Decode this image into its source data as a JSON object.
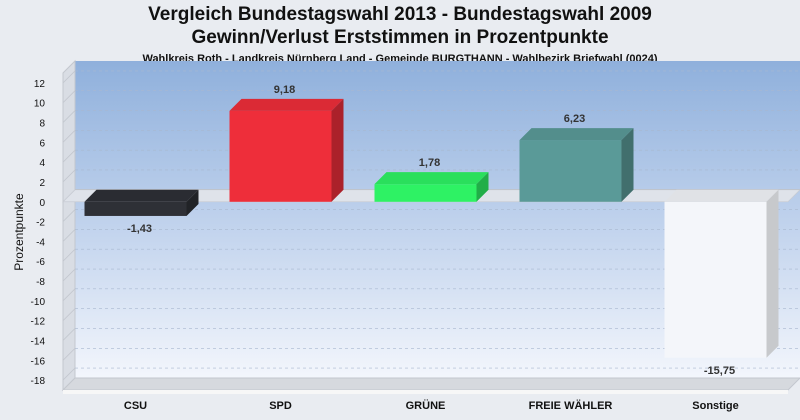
{
  "header": {
    "title_line1": "Vergleich Bundestagswahl 2013  - Bundestagswahl 2009",
    "title_line2": "Gewinn/Verlust Erststimmen in Prozentpunkte",
    "subtitle": "Wahlkreis Roth - Landkreis Nürnberg Land - Gemeinde BURGTHANN - Wahlbezirk Briefwahl (0024)"
  },
  "chart_data": {
    "type": "bar",
    "title": "Vergleich Bundestagswahl 2013  - Bundestagswahl 2009 / Gewinn/Verlust Erststimmen in Prozentpunkte",
    "ylabel": "Prozentpunkte",
    "xlabel": "",
    "categories": [
      "CSU",
      "SPD",
      "GRÜNE",
      "FREIE WÄHLER",
      "Sonstige"
    ],
    "values": [
      -1.43,
      9.18,
      1.78,
      6.23,
      -15.75
    ],
    "value_labels": [
      "-1,43",
      "9,18",
      "1,78",
      "6,23",
      "-15,75"
    ],
    "colors": [
      "#2e3036",
      "#ee2e3a",
      "#2ef264",
      "#5a9a98",
      "#f4f6fa"
    ],
    "ylim": [
      -19,
      13
    ],
    "yticks": [
      12,
      10,
      8,
      6,
      4,
      2,
      0,
      -2,
      -4,
      -6,
      -8,
      -10,
      -12,
      -14,
      -16,
      -18
    ],
    "grid": true,
    "legend": "none"
  }
}
